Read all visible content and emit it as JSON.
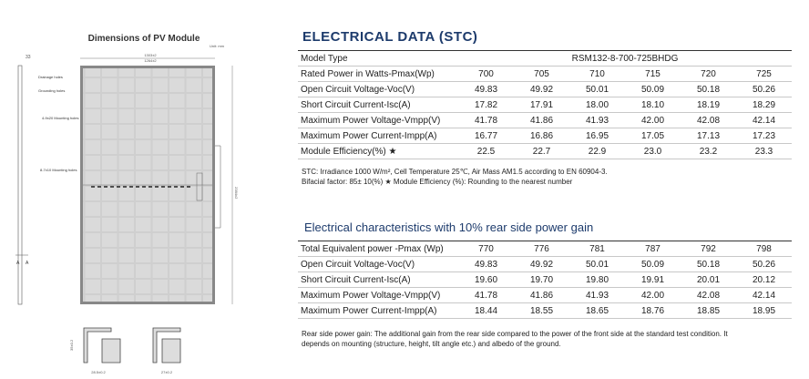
{
  "drawing": {
    "title": "Dimensions of PV Module",
    "unit": "Unit: mm",
    "width_outer": "1303±2",
    "width_inner": "1264±2",
    "frame_top": "33",
    "height": "2384±2",
    "drainage": "Drainage holes",
    "grounding": "Grounding holes",
    "mount_a": "4-9x20 Mounting holes",
    "mount_b": "8-7x10 Mounting holes",
    "section_left": "A",
    "section_right": "A",
    "profile_a_width": "28.5±0.2",
    "profile_b_width": "27±0.2",
    "profile_height": "35±0.2"
  },
  "stc": {
    "title": "ELECTRICAL DATA (STC)",
    "header": [
      "Model Type",
      "RSM132-8-700-725BHDG"
    ],
    "rows": [
      [
        "Rated Power in Watts-Pmax(Wp)",
        "700",
        "705",
        "710",
        "715",
        "720",
        "725"
      ],
      [
        "Open Circuit Voltage-Voc(V)",
        "49.83",
        "49.92",
        "50.01",
        "50.09",
        "50.18",
        "50.26"
      ],
      [
        "Short Circuit Current-Isc(A)",
        "17.82",
        "17.91",
        "18.00",
        "18.10",
        "18.19",
        "18.29"
      ],
      [
        "Maximum Power Voltage-Vmpp(V)",
        "41.78",
        "41.86",
        "41.93",
        "42.00",
        "42.08",
        "42.14"
      ],
      [
        "Maximum Power Current-Impp(A)",
        "16.77",
        "16.86",
        "16.95",
        "17.05",
        "17.13",
        "17.23"
      ],
      [
        "Module Efficiency(%) ★",
        "22.5",
        "22.7",
        "22.9",
        "23.0",
        "23.2",
        "23.3"
      ]
    ],
    "notes": [
      "STC: Irradiance 1000 W/m², Cell Temperature 25℃, Air Mass AM1.5 according to EN 60904-3.",
      "Bifacial factor: 85± 10(%)     ★ Module Efficiency (%): Rounding to the nearest number"
    ]
  },
  "rear": {
    "title": "Electrical characteristics with 10% rear side power gain",
    "rows": [
      [
        "Total Equivalent power -Pmax (Wp)",
        "770",
        "776",
        "781",
        "787",
        "792",
        "798"
      ],
      [
        "Open Circuit Voltage-Voc(V)",
        "49.83",
        "49.92",
        "50.01",
        "50.09",
        "50.18",
        "50.26"
      ],
      [
        "Short Circuit Current-Isc(A)",
        "19.60",
        "19.70",
        "19.80",
        "19.91",
        "20.01",
        "20.12"
      ],
      [
        "Maximum Power Voltage-Vmpp(V)",
        "41.78",
        "41.86",
        "41.93",
        "42.00",
        "42.08",
        "42.14"
      ],
      [
        "Maximum Power Current-Impp(A)",
        "18.44",
        "18.55",
        "18.65",
        "18.76",
        "18.85",
        "18.95"
      ]
    ],
    "note": "Rear side power gain: The additional gain from the rear side compared to the power of the front side at the standard test condition. It depends on mounting (structure, height, tilt angle etc.) and albedo of the ground."
  }
}
